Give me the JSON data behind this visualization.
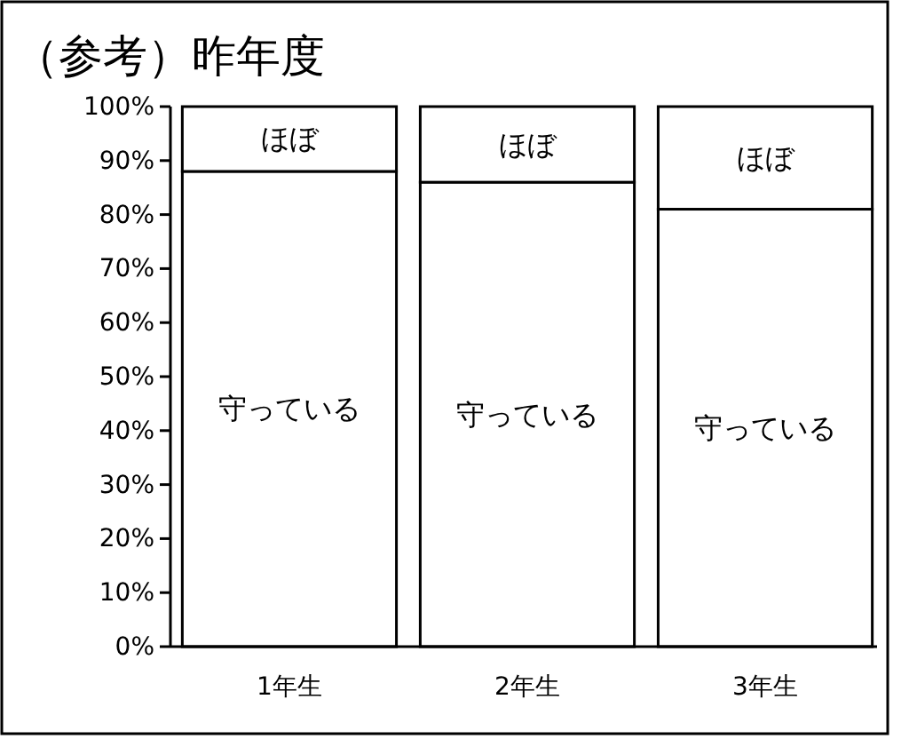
{
  "chart_data": {
    "type": "bar",
    "title": "（参考）昨年度",
    "categories": [
      "1年生",
      "2年生",
      "3年生"
    ],
    "stacked": true,
    "series": [
      {
        "name": "守っている",
        "color": "#ffffff",
        "values": [
          88,
          86,
          81
        ]
      },
      {
        "name": "ほぼ",
        "color": "#ffffff",
        "values": [
          12,
          14,
          19
        ]
      }
    ],
    "ylim": [
      0,
      100
    ],
    "yticks": [
      {
        "value": 0,
        "label": "0%"
      },
      {
        "value": 10,
        "label": "10%"
      },
      {
        "value": 20,
        "label": "20%"
      },
      {
        "value": 30,
        "label": "30%"
      },
      {
        "value": 40,
        "label": "40%"
      },
      {
        "value": 50,
        "label": "50%"
      },
      {
        "value": 60,
        "label": "60%"
      },
      {
        "value": 70,
        "label": "70%"
      },
      {
        "value": 80,
        "label": "80%"
      },
      {
        "value": 90,
        "label": "90%"
      },
      {
        "value": 100,
        "label": "100%"
      }
    ]
  }
}
